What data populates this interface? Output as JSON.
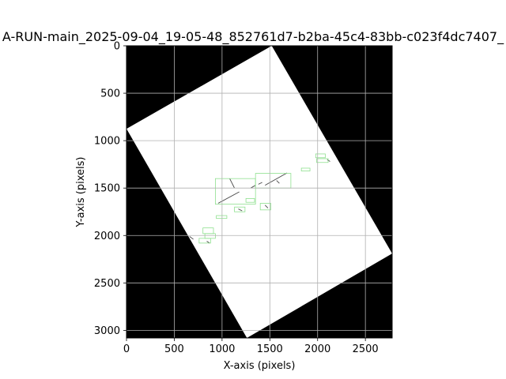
{
  "chart_data": {
    "type": "image",
    "title": "A-RUN-main_2025-09-04_19-05-48_852761d7-b2ba-45c4-83bb-c023f4dc7407_",
    "xlabel": "X-axis (pixels)",
    "ylabel": "Y-axis (pixels)",
    "xlim": [
      0,
      2780
    ],
    "ylim": [
      3080,
      0
    ],
    "grid": true,
    "background_color": "#000000",
    "page_color": "#ffffff",
    "box_color": "#8fe08f",
    "stroke_color": "#444444",
    "x_ticks": [
      {
        "value": 0,
        "label": "0"
      },
      {
        "value": 500,
        "label": "500"
      },
      {
        "value": 1000,
        "label": "1000"
      },
      {
        "value": 1500,
        "label": "1500"
      },
      {
        "value": 2000,
        "label": "2000"
      },
      {
        "value": 2500,
        "label": "2500"
      }
    ],
    "y_ticks": [
      {
        "value": 0,
        "label": "0"
      },
      {
        "value": 500,
        "label": "500"
      },
      {
        "value": 1000,
        "label": "1000"
      },
      {
        "value": 1500,
        "label": "1500"
      },
      {
        "value": 2000,
        "label": "2000"
      },
      {
        "value": 2500,
        "label": "2500"
      },
      {
        "value": 3000,
        "label": "3000"
      }
    ],
    "page_polygon": [
      [
        1520,
        0
      ],
      [
        2780,
        2190
      ],
      [
        1260,
        3080
      ],
      [
        0,
        875
      ]
    ],
    "boxes": [
      {
        "x0": 930,
        "y0": 1400,
        "x1": 1350,
        "y1": 1670
      },
      {
        "x0": 1350,
        "y0": 1345,
        "x1": 1720,
        "y1": 1500
      },
      {
        "x0": 1130,
        "y0": 1700,
        "x1": 1240,
        "y1": 1750
      },
      {
        "x0": 1250,
        "y0": 1610,
        "x1": 1340,
        "y1": 1650
      },
      {
        "x0": 1400,
        "y0": 1660,
        "x1": 1510,
        "y1": 1730
      },
      {
        "x0": 940,
        "y0": 1790,
        "x1": 1050,
        "y1": 1820
      },
      {
        "x0": 800,
        "y0": 1920,
        "x1": 910,
        "y1": 1980
      },
      {
        "x0": 820,
        "y0": 1980,
        "x1": 930,
        "y1": 2030
      },
      {
        "x0": 760,
        "y0": 2030,
        "x1": 880,
        "y1": 2080
      },
      {
        "x0": 1830,
        "y0": 1290,
        "x1": 1920,
        "y1": 1320
      },
      {
        "x0": 1980,
        "y0": 1140,
        "x1": 2080,
        "y1": 1180
      },
      {
        "x0": 1990,
        "y0": 1190,
        "x1": 2110,
        "y1": 1230
      }
    ],
    "strokes": [
      [
        [
          960,
          1660
        ],
        [
          1180,
          1540
        ]
      ],
      [
        [
          1300,
          1500
        ],
        [
          1350,
          1470
        ]
      ],
      [
        [
          1380,
          1460
        ],
        [
          1420,
          1440
        ]
      ],
      [
        [
          1450,
          1470
        ],
        [
          1680,
          1340
        ]
      ],
      [
        [
          1080,
          1400
        ],
        [
          1130,
          1500
        ]
      ],
      [
        [
          1170,
          1720
        ],
        [
          1210,
          1740
        ]
      ],
      [
        [
          1450,
          1680
        ],
        [
          1480,
          1710
        ]
      ],
      [
        [
          660,
          2010
        ],
        [
          700,
          2040
        ]
      ],
      [
        [
          840,
          2060
        ],
        [
          870,
          2080
        ]
      ],
      [
        [
          2100,
          1200
        ],
        [
          2130,
          1220
        ]
      ],
      [
        [
          1570,
          1420
        ],
        [
          1600,
          1450
        ]
      ]
    ]
  }
}
